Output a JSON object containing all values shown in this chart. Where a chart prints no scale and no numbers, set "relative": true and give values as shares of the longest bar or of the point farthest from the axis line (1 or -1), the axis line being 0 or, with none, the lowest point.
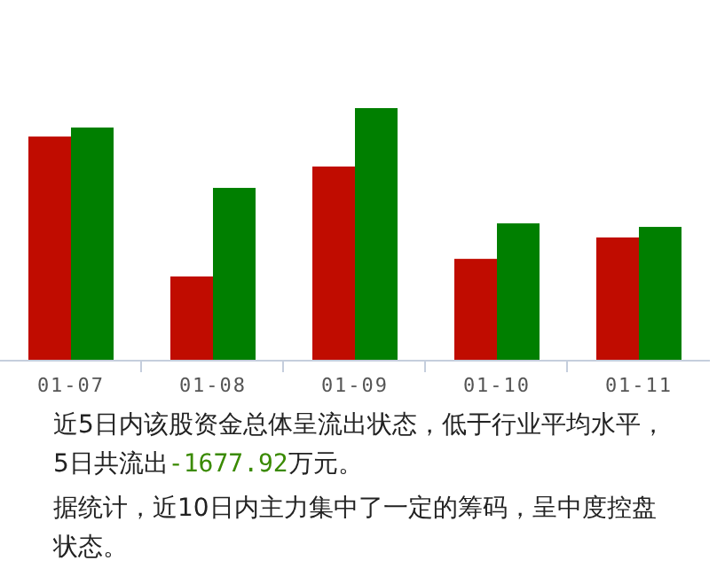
{
  "chart_data": {
    "type": "bar",
    "relative": true,
    "categories": [
      "01-07",
      "01-08",
      "01-09",
      "01-10",
      "01-11"
    ],
    "series": [
      {
        "color": "#c00c00",
        "values": [
          0.887,
          0.331,
          0.768,
          0.401,
          0.486
        ]
      },
      {
        "color": "#007f00",
        "values": [
          0.923,
          0.683,
          1,
          0.542,
          0.528
        ]
      }
    ],
    "annotations": [
      "近5日内该股资金总体呈流出状态，低于行业平均水平，5日共流出-1677.92万元。",
      "据统计，近10日内主力集中了一定的筹码，呈中度控盘状态。"
    ]
  }
}
